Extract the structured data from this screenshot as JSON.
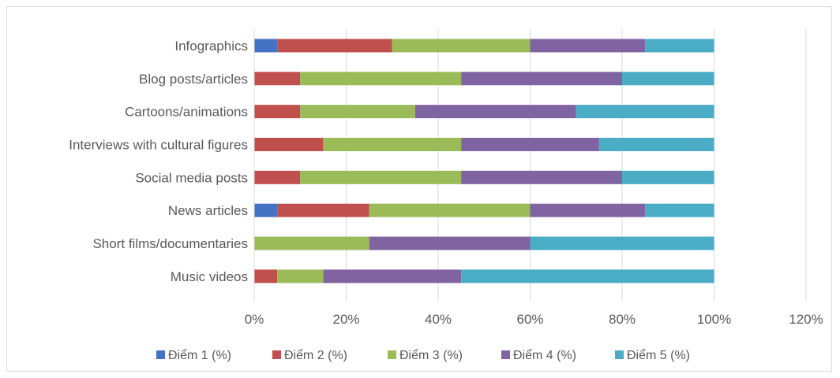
{
  "chart_data": {
    "type": "bar",
    "orientation": "horizontal",
    "stacked": true,
    "categories": [
      "Infographics",
      "Blog posts/articles",
      "Cartoons/animations",
      "Interviews with cultural figures",
      "Social media posts",
      "News articles",
      "Short films/documentaries",
      "Music videos"
    ],
    "series": [
      {
        "name": "Điểm 1 (%)",
        "color": "#4472c4",
        "values": [
          5,
          0,
          0,
          0,
          0,
          5,
          0,
          0
        ]
      },
      {
        "name": "Điểm 2 (%)",
        "color": "#c0504d",
        "values": [
          25,
          10,
          10,
          15,
          10,
          20,
          0,
          5
        ]
      },
      {
        "name": "Điểm 3 (%)",
        "color": "#9bbb59",
        "values": [
          30,
          35,
          25,
          30,
          35,
          35,
          25,
          10
        ]
      },
      {
        "name": "Điểm 4 (%)",
        "color": "#8064a2",
        "values": [
          25,
          35,
          35,
          30,
          35,
          25,
          35,
          30
        ]
      },
      {
        "name": "Điểm 5 (%)",
        "color": "#4bacc6",
        "values": [
          15,
          20,
          30,
          25,
          20,
          15,
          40,
          55
        ]
      }
    ],
    "xlim": [
      0,
      120
    ],
    "xticks": [
      "0%",
      "20%",
      "40%",
      "60%",
      "80%",
      "100%",
      "120%"
    ],
    "grid": true,
    "legend_position": "bottom",
    "title": "",
    "xlabel": "",
    "ylabel": ""
  }
}
